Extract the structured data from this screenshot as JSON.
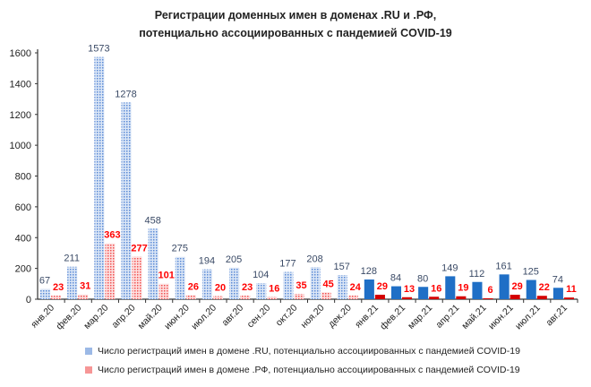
{
  "chart_data": {
    "type": "bar",
    "title_line1": "Регистрации доменных имен в доменах .RU и .РФ,",
    "title_line2": "потенциально ассоциированных с пандемией COVID-19",
    "categories": [
      "янв.20",
      "фев.20",
      "мар.20",
      "апр.20",
      "май.20",
      "июн.20",
      "июл.20",
      "авг.20",
      "сен.20",
      "окт.20",
      "ноя.20",
      "дек.20",
      "янв.21",
      "фев.21",
      "мар.21",
      "апр.21",
      "май.21",
      "июн.21",
      "июл.21",
      "авг.21"
    ],
    "series": [
      {
        "name": "Число регистраций имен в домене .RU, потенциально ассоциированных с пандемией COVID-19",
        "values": [
          67,
          211,
          1573,
          1278,
          458,
          275,
          194,
          205,
          104,
          177,
          208,
          157,
          128,
          84,
          80,
          149,
          112,
          161,
          125,
          74
        ],
        "color": "#1f6fc6",
        "label_color": "#3a4a66"
      },
      {
        "name": "Число регистраций имен в домене .РФ, потенциально ассоциированных с пандемией COVID-19",
        "values": [
          23,
          31,
          363,
          277,
          101,
          26,
          20,
          23,
          16,
          35,
          45,
          24,
          29,
          13,
          16,
          19,
          6,
          29,
          22,
          11
        ],
        "color": "#d40000",
        "label_color": "#ff0000"
      }
    ],
    "patterned_categories_note_free": true,
    "yticks": [
      0,
      200,
      400,
      600,
      800,
      1000,
      1200,
      1400,
      1600
    ],
    "ylim": [
      0,
      1600
    ],
    "grid": false,
    "legend_position": "bottom"
  }
}
